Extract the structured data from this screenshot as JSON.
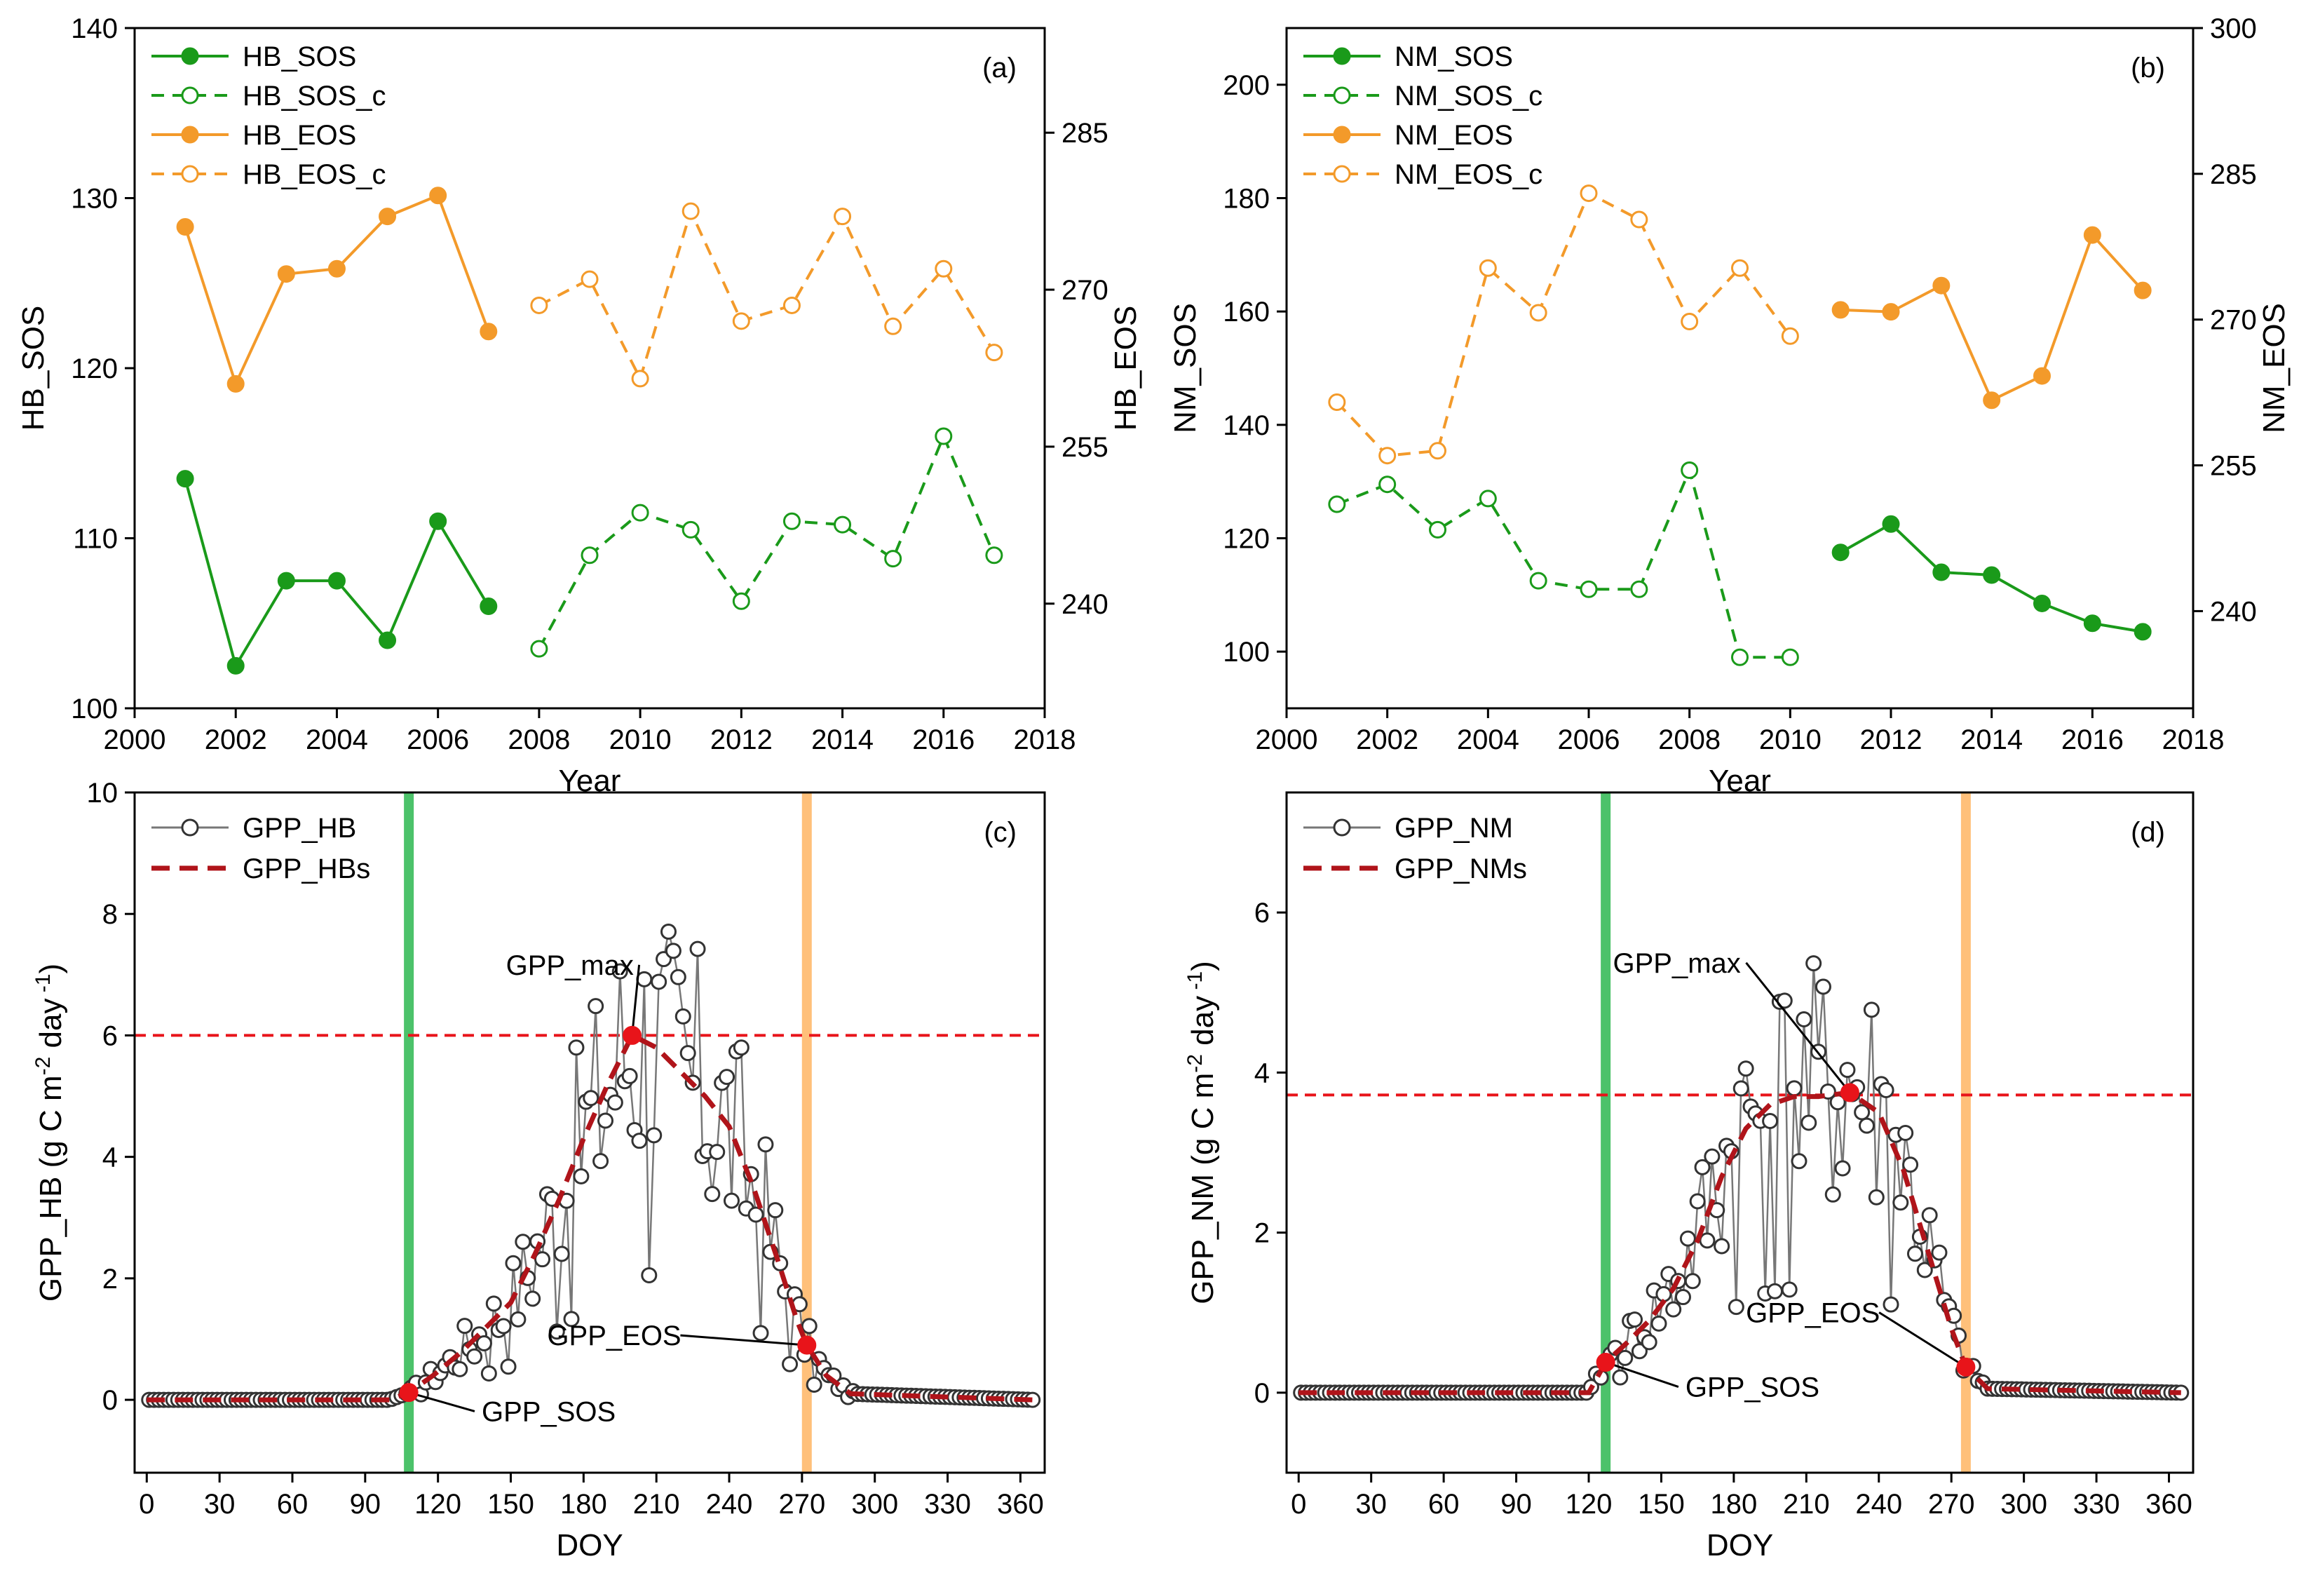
{
  "chart_data": [
    {
      "id": "a",
      "type": "line",
      "panel_label": "(a)",
      "xlabel": "Year",
      "ylabel_left": "HB_SOS",
      "ylabel_right": "HB_EOS",
      "xlim": [
        2000,
        2018
      ],
      "xticks": [
        "2000",
        "2002",
        "2004",
        "2006",
        "2008",
        "2010",
        "2012",
        "2014",
        "2016",
        "2018"
      ],
      "ylim_left": [
        100,
        140
      ],
      "yticks_left": [
        "100",
        "110",
        "120",
        "130",
        "140"
      ],
      "ylim_right": [
        230,
        295
      ],
      "yticks_right": [
        "240",
        "255",
        "270",
        "285"
      ],
      "legend_position": "top-left",
      "series": [
        {
          "name": "HB_SOS",
          "axis": "left",
          "color": "#1a9a1a",
          "style": "solid",
          "marker": "filled",
          "x": [
            2001,
            2002,
            2003,
            2004,
            2005,
            2006,
            2007
          ],
          "y": [
            113.5,
            102.5,
            107.5,
            107.5,
            104,
            111,
            106
          ]
        },
        {
          "name": "HB_SOS_c",
          "axis": "left",
          "color": "#1a9a1a",
          "style": "dashed",
          "marker": "open",
          "x": [
            2008,
            2009,
            2010,
            2011,
            2012,
            2013,
            2014,
            2015,
            2016,
            2017
          ],
          "y": [
            103.5,
            109,
            111.5,
            110.5,
            106.3,
            111,
            110.8,
            108.8,
            116,
            109
          ]
        },
        {
          "name": "HB_EOS",
          "axis": "right",
          "color": "#f39a2a",
          "style": "solid",
          "marker": "filled",
          "x": [
            2001,
            2002,
            2003,
            2004,
            2005,
            2006,
            2007
          ],
          "y": [
            276,
            261,
            271.5,
            272,
            277,
            279,
            266
          ]
        },
        {
          "name": "HB_EOS_c",
          "axis": "right",
          "color": "#f39a2a",
          "style": "dashed",
          "marker": "open",
          "x": [
            2008,
            2009,
            2010,
            2011,
            2012,
            2013,
            2014,
            2015,
            2016,
            2017
          ],
          "y": [
            268.5,
            271,
            261.5,
            277.5,
            267,
            268.5,
            277,
            266.5,
            272,
            264
          ]
        }
      ]
    },
    {
      "id": "b",
      "type": "line",
      "panel_label": "(b)",
      "xlabel": "Year",
      "ylabel_left": "NM_SOS",
      "ylabel_right": "NM_EOS",
      "xlim": [
        2000,
        2018
      ],
      "xticks": [
        "2000",
        "2002",
        "2004",
        "2006",
        "2008",
        "2010",
        "2012",
        "2014",
        "2016",
        "2018"
      ],
      "ylim_left": [
        90,
        210
      ],
      "yticks_left": [
        "100",
        "120",
        "140",
        "160",
        "180",
        "200"
      ],
      "ylim_right": [
        230,
        300
      ],
      "yticks_right": [
        "240",
        "255",
        "270",
        "285",
        "300"
      ],
      "legend_position": "top-left",
      "series": [
        {
          "name": "NM_SOS",
          "axis": "left",
          "color": "#1a9a1a",
          "style": "solid",
          "marker": "filled",
          "x": [
            2011,
            2012,
            2013,
            2014,
            2015,
            2016,
            2017
          ],
          "y": [
            117.5,
            122.5,
            114,
            113.5,
            108.5,
            105,
            103.5
          ]
        },
        {
          "name": "NM_SOS_c",
          "axis": "left",
          "color": "#1a9a1a",
          "style": "dashed",
          "marker": "open",
          "x": [
            2001,
            2002,
            2003,
            2004,
            2005,
            2006,
            2007,
            2008,
            2009,
            2010
          ],
          "y": [
            126,
            129.5,
            121.5,
            127,
            112.5,
            111,
            111,
            132,
            99,
            99
          ]
        },
        {
          "name": "NM_EOS",
          "axis": "right",
          "color": "#f39a2a",
          "style": "solid",
          "marker": "filled",
          "x": [
            2011,
            2012,
            2013,
            2014,
            2015,
            2016,
            2017
          ],
          "y": [
            271,
            270.8,
            273.5,
            261.7,
            264.2,
            278.7,
            273
          ]
        },
        {
          "name": "NM_EOS_c",
          "axis": "right",
          "color": "#f39a2a",
          "style": "dashed",
          "marker": "open",
          "x": [
            2001,
            2002,
            2003,
            2004,
            2005,
            2006,
            2007,
            2008,
            2009,
            2010
          ],
          "y": [
            261.5,
            256,
            256.5,
            275.3,
            270.7,
            283,
            280.3,
            269.8,
            275.3,
            268.3
          ]
        }
      ]
    },
    {
      "id": "c",
      "type": "line",
      "panel_label": "(c)",
      "xlabel": "DOY",
      "ylabel": "GPP_HB (g C m-2 day -1)",
      "ylabel_parts": [
        "GPP_HB (g C m",
        "-2",
        " day",
        " -1",
        ")"
      ],
      "xlim": [
        -5,
        370
      ],
      "xticks": [
        "0",
        "30",
        "60",
        "90",
        "120",
        "150",
        "180",
        "210",
        "240",
        "270",
        "300",
        "330",
        "360"
      ],
      "ylim": [
        -1.2,
        10
      ],
      "yticks": [
        "0",
        "2",
        "4",
        "6",
        "8",
        "10"
      ],
      "hline": 6,
      "vlines": [
        {
          "x": 108,
          "color": "#4cc26a"
        },
        {
          "x": 272,
          "color": "#ffc07a"
        }
      ],
      "key_points": [
        {
          "label": "GPP_SOS",
          "x": 108,
          "y": 0.12,
          "text_x": 138,
          "text_y": -0.35
        },
        {
          "label": "GPP_max",
          "x": 200,
          "y": 6.0,
          "text_x": 148,
          "text_y": 7.0
        },
        {
          "label": "GPP_EOS",
          "x": 272,
          "y": 0.9,
          "text_x": 165,
          "text_y": 0.9
        }
      ],
      "legend_position": "top-left",
      "series": [
        {
          "name": "GPP_HB",
          "color": "#777777",
          "marker": "open",
          "peak": 6.0,
          "start": 108,
          "end": 292,
          "peak_doy": 200
        },
        {
          "name": "GPP_HBs",
          "color": "#b0141a",
          "style": "dashed",
          "x": [
            0,
            100,
            108,
            118,
            130,
            140,
            150,
            160,
            170,
            180,
            190,
            200,
            210,
            220,
            230,
            240,
            250,
            260,
            268,
            272,
            280,
            290,
            365
          ],
          "y": [
            0,
            0,
            0.12,
            0.4,
            0.8,
            1.2,
            1.6,
            2.4,
            3.3,
            4.3,
            5.2,
            6.0,
            5.8,
            5.4,
            5.0,
            4.5,
            3.5,
            2.3,
            1.3,
            0.9,
            0.4,
            0.1,
            0
          ]
        }
      ]
    },
    {
      "id": "d",
      "type": "line",
      "panel_label": "(d)",
      "xlabel": "DOY",
      "ylabel": "GPP_NM (g C m-2 day -1)",
      "ylabel_parts": [
        "GPP_NM (g C m",
        "-2",
        " day",
        " -1",
        ")"
      ],
      "xlim": [
        -5,
        370
      ],
      "xticks": [
        "0",
        "30",
        "60",
        "90",
        "120",
        "150",
        "180",
        "210",
        "240",
        "270",
        "300",
        "330",
        "360"
      ],
      "ylim": [
        -1.0,
        7.5
      ],
      "yticks": [
        "0",
        "2",
        "4",
        "6"
      ],
      "hline": 3.72,
      "vlines": [
        {
          "x": 127,
          "color": "#4cc26a"
        },
        {
          "x": 276,
          "color": "#ffc07a"
        }
      ],
      "key_points": [
        {
          "label": "GPP_SOS",
          "x": 127,
          "y": 0.38,
          "text_x": 160,
          "text_y": -0.05
        },
        {
          "label": "GPP_max",
          "x": 228,
          "y": 3.75,
          "text_x": 130,
          "text_y": 5.25
        },
        {
          "label": "GPP_EOS",
          "x": 276,
          "y": 0.32,
          "text_x": 185,
          "text_y": 0.88
        }
      ],
      "legend_position": "top-left",
      "series": [
        {
          "name": "GPP_NM",
          "color": "#777777",
          "marker": "open",
          "peak": 3.75,
          "start": 120,
          "end": 285,
          "peak_doy": 215
        },
        {
          "name": "GPP_NMs",
          "color": "#b0141a",
          "style": "dashed",
          "x": [
            0,
            120,
            127,
            135,
            145,
            155,
            165,
            175,
            185,
            195,
            205,
            215,
            228,
            240,
            250,
            260,
            270,
            276,
            285,
            365
          ],
          "y": [
            0,
            0,
            0.38,
            0.6,
            0.9,
            1.3,
            1.9,
            2.7,
            3.3,
            3.6,
            3.7,
            3.7,
            3.75,
            3.5,
            2.8,
            1.8,
            0.8,
            0.32,
            0.05,
            0
          ]
        }
      ]
    }
  ]
}
